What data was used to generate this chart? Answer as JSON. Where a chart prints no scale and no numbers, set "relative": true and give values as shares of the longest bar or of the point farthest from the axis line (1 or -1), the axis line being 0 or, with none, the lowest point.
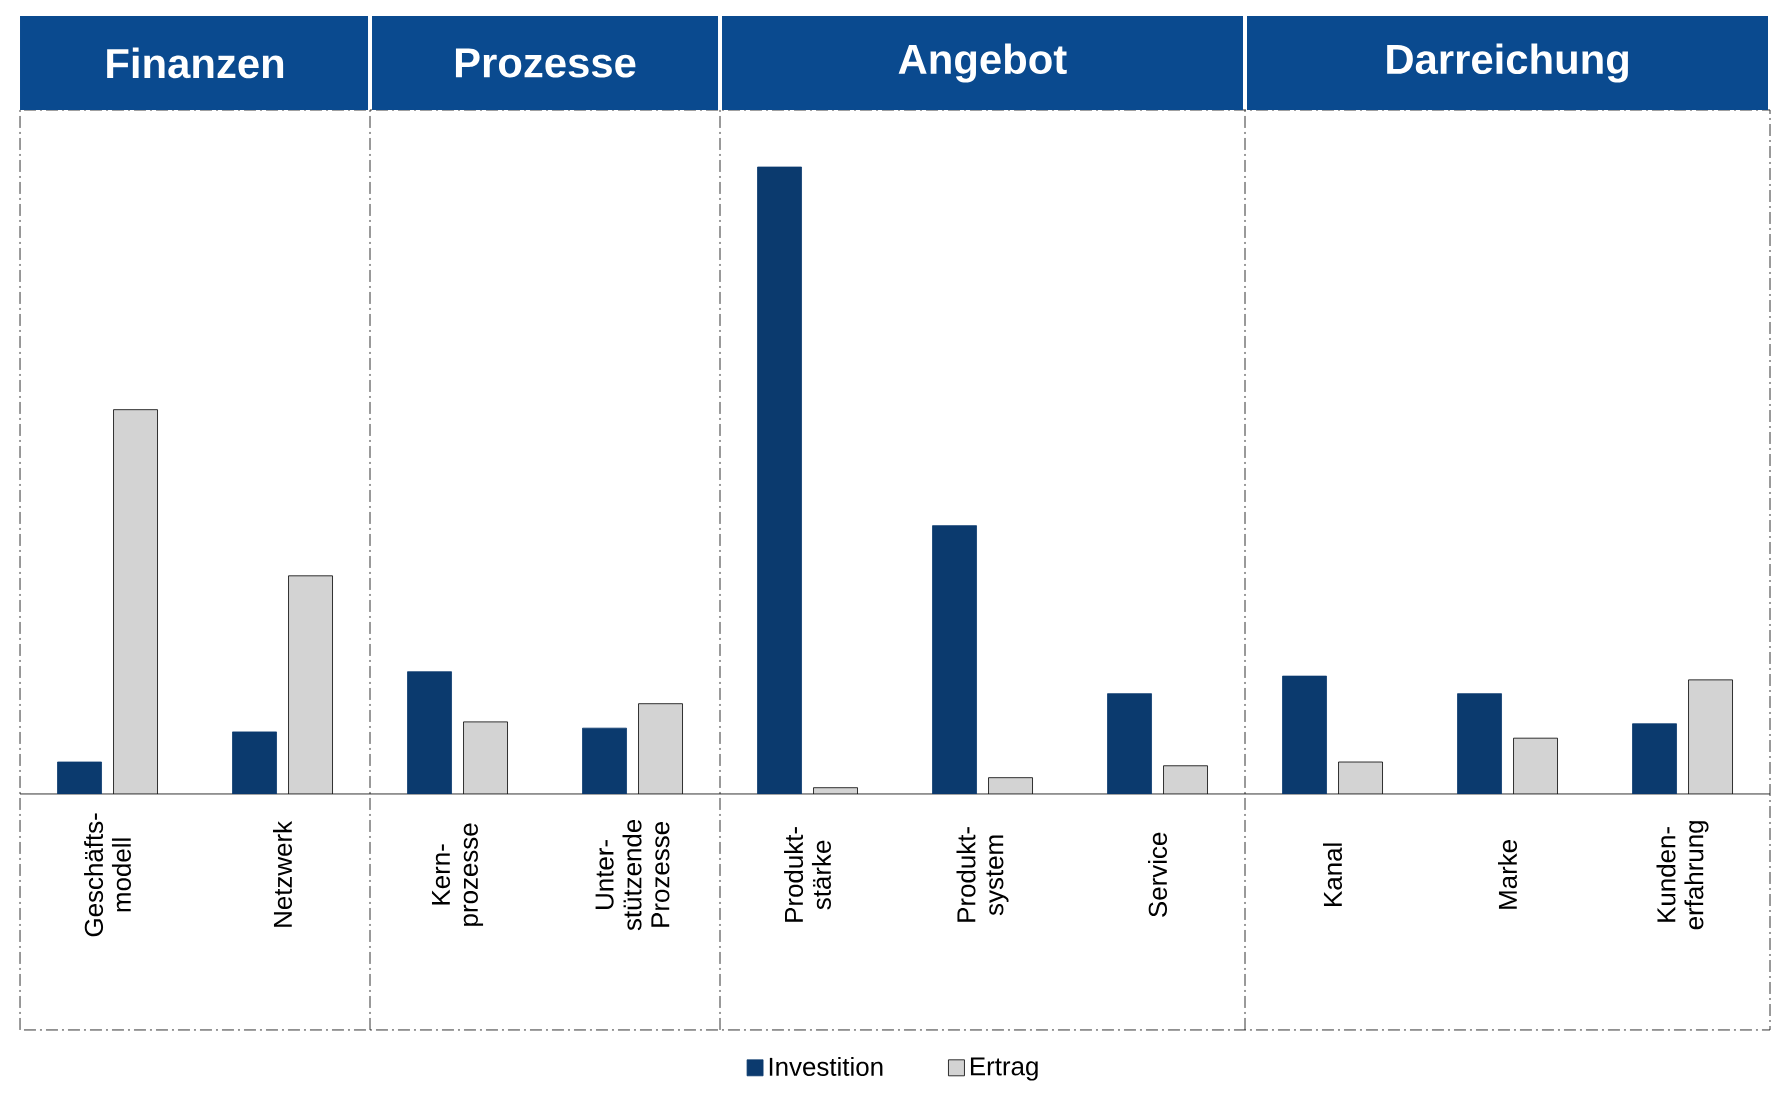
{
  "chart_data": {
    "type": "bar",
    "relative": true,
    "legend": "bottom",
    "annotations": [
      "Finanzen",
      "Prozesse",
      "Angebot",
      "Darreichung"
    ],
    "categories": [
      "Geschäfts-modell",
      "Netzwerk",
      "Kern-prozesse",
      "Unter-stützende Prozesse",
      "Produkt-stärke",
      "Produkt-system",
      "Service",
      "Kanal",
      "Marke",
      "Kunden-erfahrung"
    ],
    "series": [
      {
        "name": "Investition",
        "color": "#0b3a6e",
        "values": [
          0.051,
          0.099,
          0.195,
          0.105,
          1,
          0.428,
          0.16,
          0.188,
          0.16,
          0.112
        ]
      },
      {
        "name": "Ertrag",
        "color": "#d3d3d3",
        "values": [
          0.613,
          0.348,
          0.115,
          0.144,
          0.01,
          0.026,
          0.045,
          0.051,
          0.089,
          0.182
        ]
      }
    ]
  }
}
